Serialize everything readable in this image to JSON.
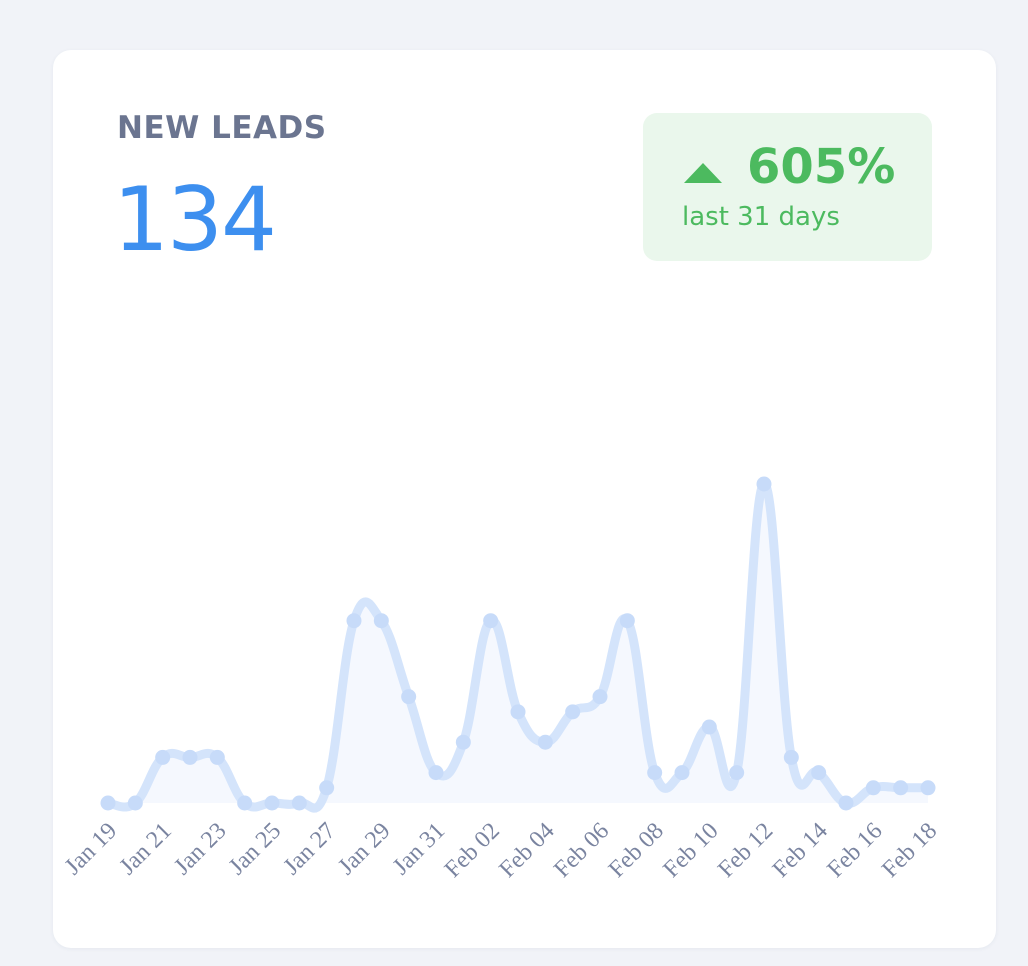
{
  "card": {
    "title": "NEW LEADS",
    "total": "134",
    "badge": {
      "change": "605%",
      "period": "last 31 days"
    }
  },
  "chart_data": {
    "type": "line",
    "categories": [
      "Jan 19",
      null,
      "Jan 21",
      null,
      "Jan 23",
      null,
      "Jan 25",
      null,
      "Jan 27",
      null,
      "Jan 29",
      null,
      "Jan 31",
      null,
      "Feb 02",
      null,
      "Feb 04",
      null,
      "Feb 06",
      null,
      "Feb 08",
      null,
      "Feb 10",
      null,
      "Feb 12",
      null,
      "Feb 14",
      null,
      "Feb 16",
      null,
      "Feb 18"
    ],
    "values": [
      0,
      0,
      3,
      3,
      3,
      0,
      0,
      0,
      1,
      12,
      12,
      7,
      2,
      4,
      12,
      6,
      4,
      6,
      7,
      12,
      2,
      2,
      5,
      2,
      21,
      3,
      2,
      0,
      1,
      1,
      1
    ],
    "color": "#d4e4fb",
    "ylim": [
      0,
      21
    ]
  }
}
